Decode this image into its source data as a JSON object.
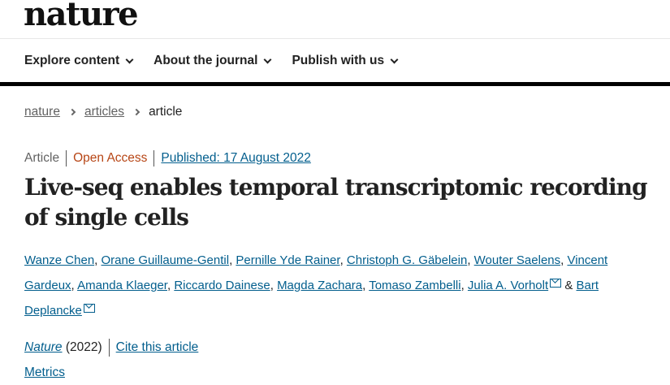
{
  "logo": "nature",
  "nav": [
    {
      "label": "Explore content"
    },
    {
      "label": "About the journal"
    },
    {
      "label": "Publish with us"
    }
  ],
  "breadcrumb": [
    "nature",
    "articles",
    "article"
  ],
  "meta": {
    "type": "Article",
    "access": "Open Access",
    "published": "Published: 17 August 2022"
  },
  "title": "Live-seq enables temporal transcriptomic recording of single cells",
  "authors": [
    "Wanze Chen",
    "Orane Guillaume-Gentil",
    "Pernille Yde Rainer",
    "Christoph G. Gäbelein",
    "Wouter Saelens",
    "Vincent Gardeux",
    "Amanda Klaeger",
    "Riccardo Dainese",
    "Magda Zachara",
    "Tomaso Zambelli",
    "Julia A. Vorholt",
    "Bart Deplancke"
  ],
  "authors_and": "&",
  "citation": {
    "journal": "Nature",
    "year": "(2022)",
    "cite_link": "Cite this article"
  },
  "metrics": "Metrics",
  "colors": {
    "link": "#025e8d",
    "open_access": "#b74616",
    "text": "#222222"
  }
}
